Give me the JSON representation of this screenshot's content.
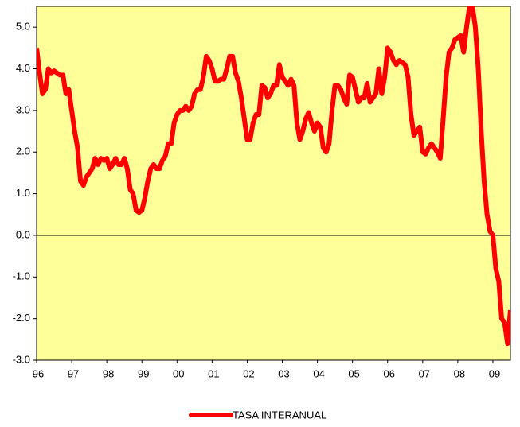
{
  "chart_data": {
    "type": "line",
    "categories": [
      "96",
      null,
      null,
      null,
      null,
      null,
      null,
      null,
      null,
      null,
      null,
      null,
      "97",
      null,
      null,
      null,
      null,
      null,
      null,
      null,
      null,
      null,
      null,
      null,
      "98",
      null,
      null,
      null,
      null,
      null,
      null,
      null,
      null,
      null,
      null,
      null,
      "99",
      null,
      null,
      null,
      null,
      null,
      null,
      null,
      null,
      null,
      null,
      null,
      "00",
      null,
      null,
      null,
      null,
      null,
      null,
      null,
      null,
      null,
      null,
      null,
      "01",
      null,
      null,
      null,
      null,
      null,
      null,
      null,
      null,
      null,
      null,
      null,
      "02",
      null,
      null,
      null,
      null,
      null,
      null,
      null,
      null,
      null,
      null,
      null,
      "03",
      null,
      null,
      null,
      null,
      null,
      null,
      null,
      null,
      null,
      null,
      null,
      "04",
      null,
      null,
      null,
      null,
      null,
      null,
      null,
      null,
      null,
      null,
      null,
      "05",
      null,
      null,
      null,
      null,
      null,
      null,
      null,
      null,
      null,
      null,
      null,
      "06",
      null,
      null,
      null,
      null,
      null,
      null,
      null,
      null,
      null,
      null,
      null,
      "07",
      null,
      null,
      null,
      null,
      null,
      null,
      null,
      null,
      null,
      null,
      null,
      "08",
      null,
      null,
      null,
      null,
      null,
      null,
      null,
      null,
      null,
      null,
      null,
      "09",
      null,
      null,
      null,
      null,
      null,
      null
    ],
    "series": [
      {
        "name": "TASA INTERANUAL",
        "color": "#ff0000",
        "values": [
          4.5,
          3.9,
          3.4,
          3.5,
          4.0,
          3.9,
          3.95,
          3.9,
          3.85,
          3.85,
          3.4,
          3.5,
          3.0,
          2.5,
          2.1,
          1.3,
          1.2,
          1.4,
          1.5,
          1.6,
          1.85,
          1.7,
          1.85,
          1.8,
          1.85,
          1.6,
          1.7,
          1.85,
          1.7,
          1.7,
          1.85,
          1.6,
          1.1,
          1.0,
          0.6,
          0.55,
          0.6,
          0.9,
          1.3,
          1.6,
          1.7,
          1.6,
          1.6,
          1.8,
          1.9,
          2.2,
          2.2,
          2.7,
          2.9,
          3.0,
          3.0,
          3.1,
          3.0,
          3.1,
          3.4,
          3.5,
          3.5,
          3.8,
          4.3,
          4.2,
          4.0,
          3.7,
          3.7,
          3.75,
          3.75,
          4.0,
          4.3,
          4.3,
          3.9,
          3.7,
          3.3,
          2.8,
          2.3,
          2.3,
          2.7,
          2.9,
          2.9,
          3.6,
          3.55,
          3.3,
          3.4,
          3.6,
          3.6,
          4.1,
          3.8,
          3.7,
          3.6,
          3.75,
          3.6,
          2.7,
          2.3,
          2.5,
          2.8,
          2.95,
          2.7,
          2.5,
          2.7,
          2.6,
          2.1,
          2.0,
          2.2,
          3.0,
          3.6,
          3.6,
          3.5,
          3.3,
          3.15,
          3.85,
          3.8,
          3.5,
          3.2,
          3.3,
          3.3,
          3.65,
          3.2,
          3.3,
          3.4,
          4.0,
          3.4,
          3.8,
          4.5,
          4.4,
          4.2,
          4.1,
          4.2,
          4.15,
          4.1,
          3.8,
          2.9,
          2.4,
          2.5,
          2.6,
          2.0,
          1.95,
          2.1,
          2.2,
          2.1,
          2.0,
          1.85,
          2.8,
          3.8,
          4.4,
          4.5,
          4.7,
          4.75,
          4.8,
          4.4,
          5.0,
          5.5,
          5.5,
          5.0,
          4.0,
          2.5,
          1.3,
          0.5,
          0.1,
          0.0,
          -0.8,
          -1.1,
          -2.0,
          -2.1,
          -2.6,
          -1.8
        ]
      }
    ],
    "ylim": [
      -3,
      5.5
    ],
    "yticks": [
      {
        "value": -3,
        "label": "-3.0"
      },
      {
        "value": -2,
        "label": "-2.0"
      },
      {
        "value": -1,
        "label": "-1.0"
      },
      {
        "value": 0,
        "label": "0.0"
      },
      {
        "value": 1,
        "label": "1.0"
      },
      {
        "value": 2,
        "label": "2.0"
      },
      {
        "value": 3,
        "label": "3.0"
      },
      {
        "value": 4,
        "label": "4.0"
      },
      {
        "value": 5,
        "label": "5.0"
      }
    ],
    "zero_line": true,
    "legend": "bottom",
    "plot_color": "#ffff99"
  }
}
